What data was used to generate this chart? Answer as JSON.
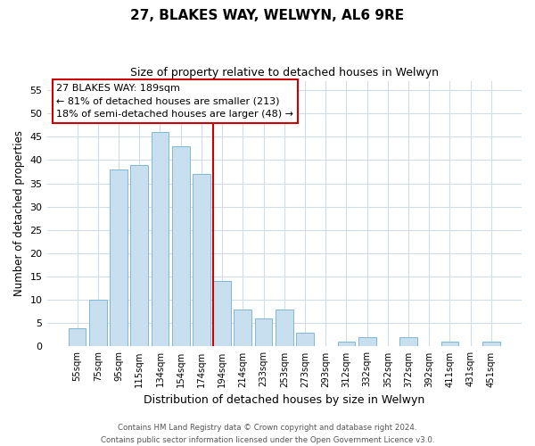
{
  "title": "27, BLAKES WAY, WELWYN, AL6 9RE",
  "subtitle": "Size of property relative to detached houses in Welwyn",
  "xlabel": "Distribution of detached houses by size in Welwyn",
  "ylabel": "Number of detached properties",
  "bar_labels": [
    "55sqm",
    "75sqm",
    "95sqm",
    "115sqm",
    "134sqm",
    "154sqm",
    "174sqm",
    "194sqm",
    "214sqm",
    "233sqm",
    "253sqm",
    "273sqm",
    "293sqm",
    "312sqm",
    "332sqm",
    "352sqm",
    "372sqm",
    "392sqm",
    "411sqm",
    "431sqm",
    "451sqm"
  ],
  "bar_values": [
    4,
    10,
    38,
    39,
    46,
    43,
    37,
    14,
    8,
    6,
    8,
    3,
    0,
    1,
    2,
    0,
    2,
    0,
    1,
    0,
    1
  ],
  "bar_color": "#c8dff0",
  "bar_edge_color": "#7eb8d4",
  "highlight_line_color": "#cc0000",
  "annotation_text_line1": "27 BLAKES WAY: 189sqm",
  "annotation_text_line2": "← 81% of detached houses are smaller (213)",
  "annotation_text_line3": "18% of semi-detached houses are larger (48) →",
  "ylim": [
    0,
    57
  ],
  "yticks": [
    0,
    5,
    10,
    15,
    20,
    25,
    30,
    35,
    40,
    45,
    50,
    55
  ],
  "footer_line1": "Contains HM Land Registry data © Crown copyright and database right 2024.",
  "footer_line2": "Contains public sector information licensed under the Open Government Licence v3.0.",
  "bg_color": "#ffffff",
  "plot_bg_color": "#ffffff",
  "grid_color": "#d0dce8"
}
